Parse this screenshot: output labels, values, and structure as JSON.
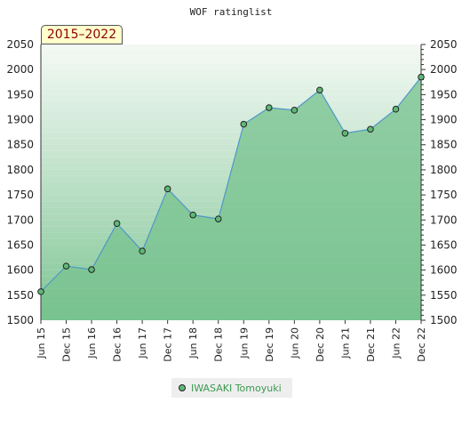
{
  "chart_data": {
    "type": "area",
    "title": "WOF ratinglist",
    "period_label": "2015–2022",
    "x": [
      "Jun 15",
      "Dec 15",
      "Jun 16",
      "Dec 16",
      "Jun 17",
      "Dec 17",
      "Jun 18",
      "Dec 18",
      "Jun 19",
      "Dec 19",
      "Jun 20",
      "Dec 20",
      "Jun 21",
      "Dec 21",
      "Jun 22",
      "Dec 22"
    ],
    "series": [
      {
        "name": "IWASAKI Tomoyuki",
        "values": [
          1557,
          1608,
          1601,
          1693,
          1638,
          1762,
          1710,
          1702,
          1891,
          1924,
          1919,
          1959,
          1873,
          1881,
          1921,
          1985
        ]
      }
    ],
    "ylim": [
      1500,
      2050
    ],
    "yticks": [
      1500,
      1550,
      1600,
      1650,
      1700,
      1750,
      1800,
      1850,
      1900,
      1950,
      2000,
      2050
    ],
    "right_axis": true,
    "grid": "horizontal bands",
    "legend_position": "bottom",
    "colors": {
      "line": "#4f97c8",
      "marker": "#5fb876",
      "fill_dark": "#78c28f",
      "fill_light": "#f2f8f3",
      "legend_text": "#3a9a50"
    }
  }
}
